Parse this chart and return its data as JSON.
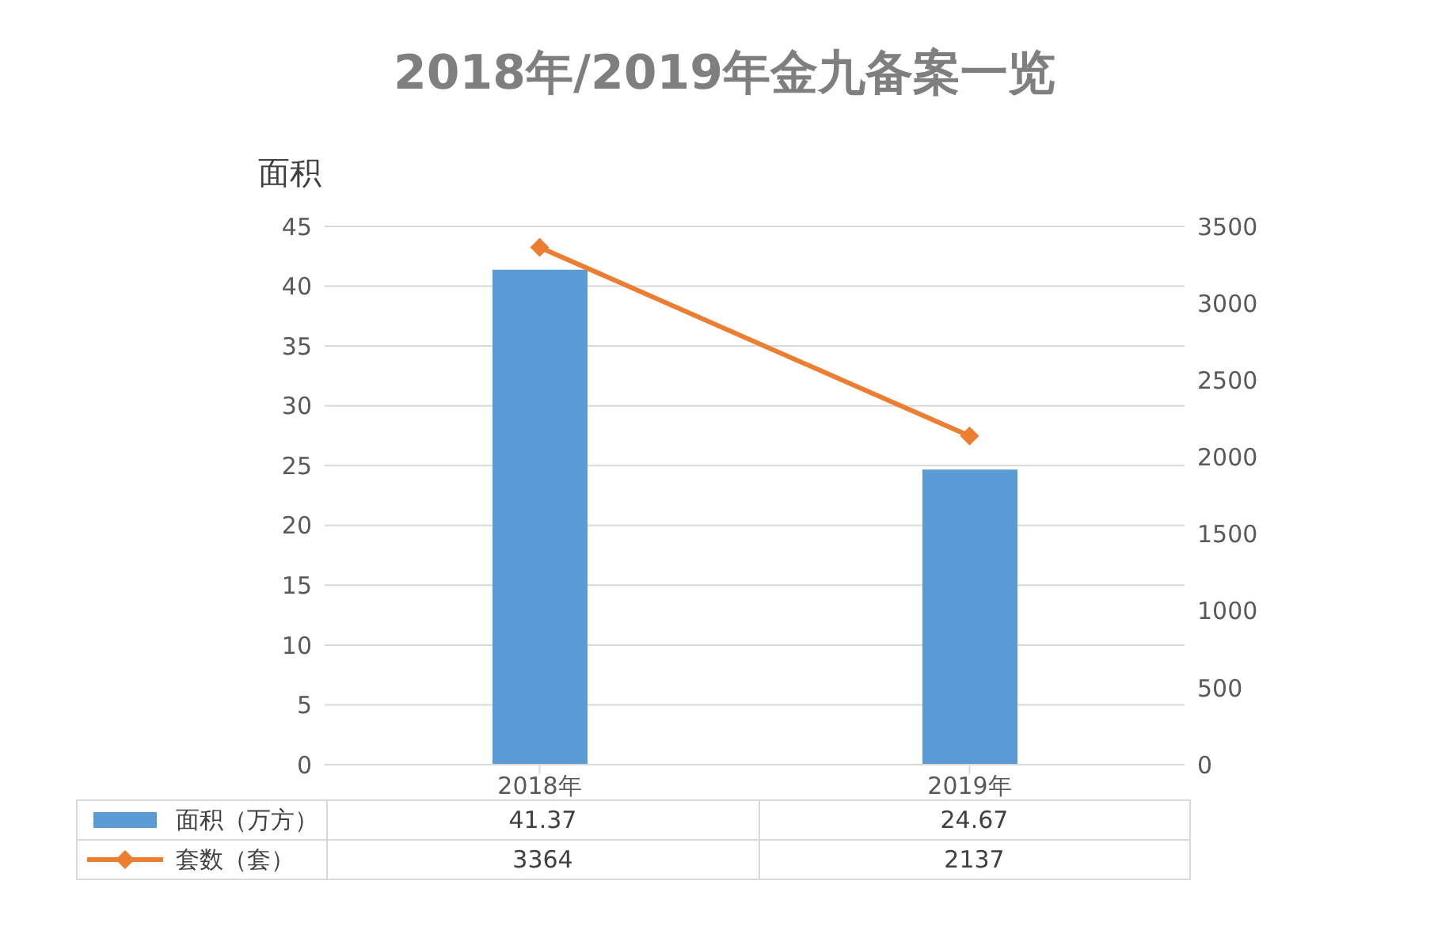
{
  "chart_data": {
    "type": "bar",
    "title": "2018年/2019年金九备案一览",
    "ylabel": "面积",
    "categories": [
      "2018年",
      "2019年"
    ],
    "series": [
      {
        "name": "面积（万方）",
        "color": "#5b9bd5",
        "values": [
          41.37,
          24.67
        ]
      },
      {
        "name": "套数（套）",
        "type": "line",
        "axis": "y2",
        "color": "#ed7d31",
        "values": [
          3364,
          2137
        ]
      }
    ],
    "ylim": [
      0,
      45
    ],
    "yticks": [
      0,
      5,
      10,
      15,
      20,
      25,
      30,
      35,
      40,
      45
    ],
    "y2lim": [
      0,
      3500
    ],
    "y2ticks": [
      0,
      500,
      1000,
      1500,
      2000,
      2500,
      3000,
      3500
    ],
    "grid": "y",
    "legend": "bottom",
    "data_labels": true,
    "marker": "diamond",
    "line_style": "solid"
  }
}
